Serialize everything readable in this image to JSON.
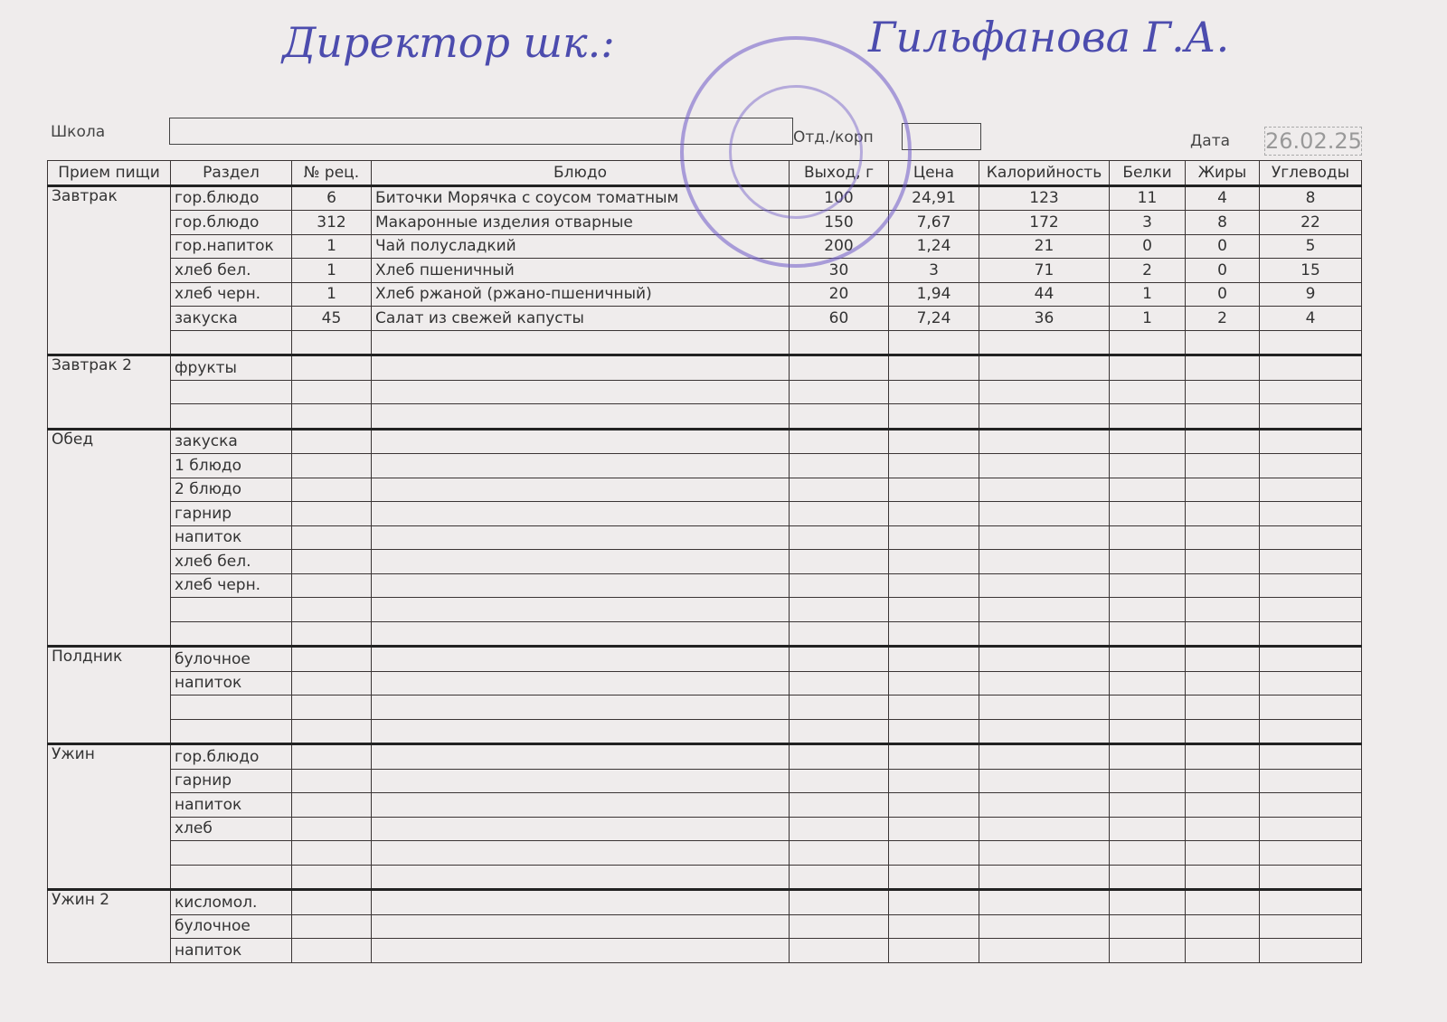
{
  "signature": {
    "label": "Директор шк.:",
    "name": "Гильфанова Г.А."
  },
  "header": {
    "school_label": "Школа",
    "department_label": "Отд./корп",
    "date_label": "Дата",
    "date": "26.02.25"
  },
  "table": {
    "columns": [
      "Прием пищи",
      "Раздел",
      "№ рец.",
      "Блюдо",
      "Выход, г",
      "Цена",
      "Калорийность",
      "Белки",
      "Жиры",
      "Углеводы"
    ],
    "meals": [
      {
        "name": "Завтрак",
        "rows": [
          [
            "гор.блюдо",
            6,
            "Биточки Морячка с соусом томатным",
            100,
            "24,91",
            123,
            11,
            4,
            8
          ],
          [
            "гор.блюдо",
            312,
            "Макаронные изделия отварные",
            150,
            "7,67",
            172,
            3,
            8,
            22
          ],
          [
            "гор.напиток",
            1,
            "Чай полусладкий",
            200,
            "1,24",
            21,
            0,
            0,
            5
          ],
          [
            "хлеб бел.",
            1,
            "Хлеб пшеничный",
            30,
            3,
            71,
            2,
            0,
            15
          ],
          [
            "хлеб черн.",
            1,
            "Хлеб ржаной (ржано-пшеничный)",
            20,
            "1,94",
            44,
            1,
            0,
            9
          ],
          [
            "закуска",
            45,
            "Салат из свежей капусты",
            60,
            "7,24",
            36,
            1,
            2,
            4
          ],
          [
            null,
            null,
            null,
            null,
            null,
            null,
            null,
            null,
            null
          ]
        ]
      },
      {
        "name": "Завтрак 2",
        "rows": [
          [
            "фрукты",
            null,
            null,
            null,
            null,
            null,
            null,
            null,
            null
          ],
          [
            null,
            null,
            null,
            null,
            null,
            null,
            null,
            null,
            null
          ],
          [
            null,
            null,
            null,
            null,
            null,
            null,
            null,
            null,
            null
          ]
        ]
      },
      {
        "name": "Обед",
        "rows": [
          [
            "закуска",
            null,
            null,
            null,
            null,
            null,
            null,
            null,
            null
          ],
          [
            "1 блюдо",
            null,
            null,
            null,
            null,
            null,
            null,
            null,
            null
          ],
          [
            "2 блюдо",
            null,
            null,
            null,
            null,
            null,
            null,
            null,
            null
          ],
          [
            "гарнир",
            null,
            null,
            null,
            null,
            null,
            null,
            null,
            null
          ],
          [
            "напиток",
            null,
            null,
            null,
            null,
            null,
            null,
            null,
            null
          ],
          [
            "хлеб бел.",
            null,
            null,
            null,
            null,
            null,
            null,
            null,
            null
          ],
          [
            "хлеб черн.",
            null,
            null,
            null,
            null,
            null,
            null,
            null,
            null
          ],
          [
            null,
            null,
            null,
            null,
            null,
            null,
            null,
            null,
            null
          ],
          [
            null,
            null,
            null,
            null,
            null,
            null,
            null,
            null,
            null
          ]
        ]
      },
      {
        "name": "Полдник",
        "rows": [
          [
            "булочное",
            null,
            null,
            null,
            null,
            null,
            null,
            null,
            null
          ],
          [
            "напиток",
            null,
            null,
            null,
            null,
            null,
            null,
            null,
            null
          ],
          [
            null,
            null,
            null,
            null,
            null,
            null,
            null,
            null,
            null
          ],
          [
            null,
            null,
            null,
            null,
            null,
            null,
            null,
            null,
            null
          ]
        ]
      },
      {
        "name": "Ужин",
        "rows": [
          [
            "гор.блюдо",
            null,
            null,
            null,
            null,
            null,
            null,
            null,
            null
          ],
          [
            "гарнир",
            null,
            null,
            null,
            null,
            null,
            null,
            null,
            null
          ],
          [
            "напиток",
            null,
            null,
            null,
            null,
            null,
            null,
            null,
            null
          ],
          [
            "хлеб",
            null,
            null,
            null,
            null,
            null,
            null,
            null,
            null
          ],
          [
            null,
            null,
            null,
            null,
            null,
            null,
            null,
            null,
            null
          ],
          [
            null,
            null,
            null,
            null,
            null,
            null,
            null,
            null,
            null
          ]
        ]
      },
      {
        "name": "Ужин 2",
        "rows": [
          [
            "кисломол.",
            null,
            null,
            null,
            null,
            null,
            null,
            null,
            null
          ],
          [
            "булочное",
            null,
            null,
            null,
            null,
            null,
            null,
            null,
            null
          ],
          [
            "напиток",
            null,
            null,
            null,
            null,
            null,
            null,
            null,
            null
          ]
        ]
      }
    ]
  }
}
